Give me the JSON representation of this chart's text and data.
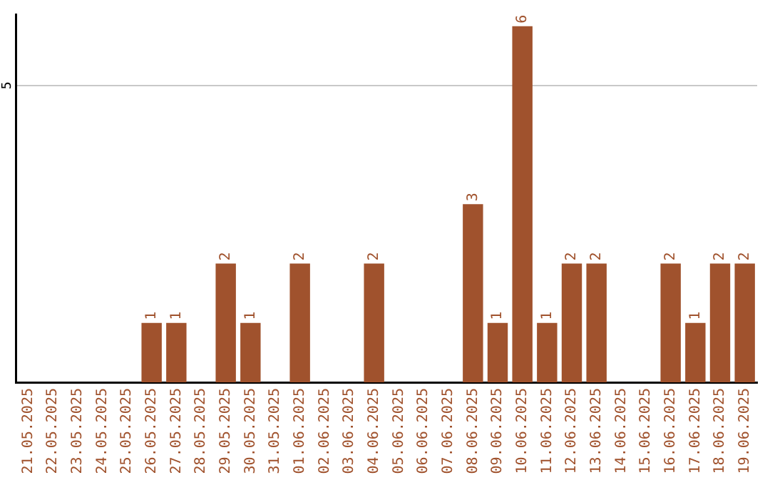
{
  "chart_data": {
    "type": "bar",
    "categories": [
      "21.05.2025",
      "22.05.2025",
      "23.05.2025",
      "24.05.2025",
      "25.05.2025",
      "26.05.2025",
      "27.05.2025",
      "28.05.2025",
      "29.05.2025",
      "30.05.2025",
      "31.05.2025",
      "01.06.2025",
      "02.06.2025",
      "03.06.2025",
      "04.06.2025",
      "05.06.2025",
      "06.06.2025",
      "07.06.2025",
      "08.06.2025",
      "09.06.2025",
      "10.06.2025",
      "11.06.2025",
      "12.06.2025",
      "13.06.2025",
      "14.06.2025",
      "15.06.2025",
      "16.06.2025",
      "17.06.2025",
      "18.06.2025",
      "19.06.2025"
    ],
    "values": [
      0,
      0,
      0,
      0,
      0,
      1,
      1,
      0,
      2,
      1,
      0,
      2,
      0,
      0,
      2,
      0,
      0,
      0,
      3,
      1,
      6,
      1,
      2,
      2,
      0,
      0,
      2,
      1,
      2,
      2
    ],
    "value_labels": [
      null,
      null,
      null,
      null,
      null,
      "1",
      "1",
      null,
      "2",
      "1",
      null,
      "2",
      null,
      null,
      "2",
      null,
      null,
      null,
      "3",
      "1",
      "6",
      "1",
      "2",
      "2",
      null,
      null,
      "2",
      "1",
      "2",
      "2"
    ],
    "color": "#a0522d",
    "ylim": [
      0,
      6.2
    ],
    "yticks": [
      5
    ],
    "grid": "y",
    "legend": false
  }
}
